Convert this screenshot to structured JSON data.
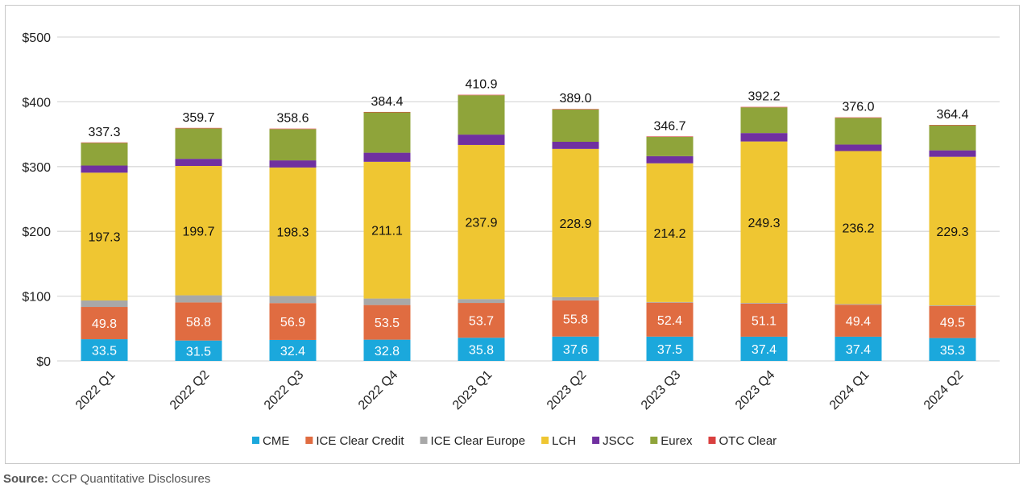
{
  "chart_data": {
    "type": "bar",
    "stacked": true,
    "title": "",
    "xlabel": "",
    "ylabel": "",
    "ylim": [
      0,
      500
    ],
    "yticks": [
      "$0",
      "$100",
      "$200",
      "$300",
      "$400",
      "$500"
    ],
    "ytick_values": [
      0,
      100,
      200,
      300,
      400,
      500
    ],
    "grid": true,
    "legend_position": "bottom",
    "categories": [
      "2022 Q1",
      "2022 Q2",
      "2022 Q3",
      "2022 Q4",
      "2023 Q1",
      "2023 Q2",
      "2023 Q3",
      "2023 Q4",
      "2024 Q1",
      "2024 Q2"
    ],
    "series": [
      {
        "name": "CME",
        "color": "#1ba8dc",
        "values": [
          33.5,
          31.5,
          32.4,
          32.8,
          35.8,
          37.6,
          37.5,
          37.4,
          37.4,
          35.3
        ],
        "labeled": true,
        "label_color": "#ffffff"
      },
      {
        "name": "ICE Clear Credit",
        "color": "#e06c41",
        "values": [
          49.8,
          58.8,
          56.9,
          53.5,
          53.7,
          55.8,
          52.4,
          51.1,
          49.4,
          49.5
        ],
        "labeled": true,
        "label_color": "#ffffff"
      },
      {
        "name": "ICE Clear Europe",
        "color": "#a8a8a8",
        "values": [
          10,
          11,
          11,
          10,
          6,
          5,
          1,
          1,
          1,
          1
        ],
        "labeled": false
      },
      {
        "name": "LCH",
        "color": "#efc632",
        "values": [
          197.3,
          199.7,
          198.3,
          211.1,
          237.9,
          228.9,
          214.2,
          249.3,
          236.2,
          229.3
        ],
        "labeled": true,
        "label_color": "#111111"
      },
      {
        "name": "JSCC",
        "color": "#7030a0",
        "values": [
          11,
          11,
          11,
          14,
          16,
          11,
          11,
          13,
          10,
          10
        ],
        "labeled": false
      },
      {
        "name": "Eurex",
        "color": "#8fa43a",
        "values": [
          35,
          47,
          48.3,
          62.3,
          60.8,
          50,
          29.9,
          39.7,
          41.3,
          38.6
        ],
        "labeled": false
      },
      {
        "name": "OTC Clear",
        "color": "#d9403f",
        "values": [
          0.7,
          0.7,
          0.7,
          0.7,
          0.7,
          0.7,
          0.7,
          0.7,
          0.7,
          0.7
        ],
        "labeled": false
      }
    ],
    "totals": [
      337.3,
      359.7,
      358.6,
      384.4,
      410.9,
      389.0,
      346.7,
      392.2,
      376.0,
      364.4
    ]
  },
  "source": {
    "label": "Source:",
    "text": " CCP Quantitative Disclosures"
  }
}
